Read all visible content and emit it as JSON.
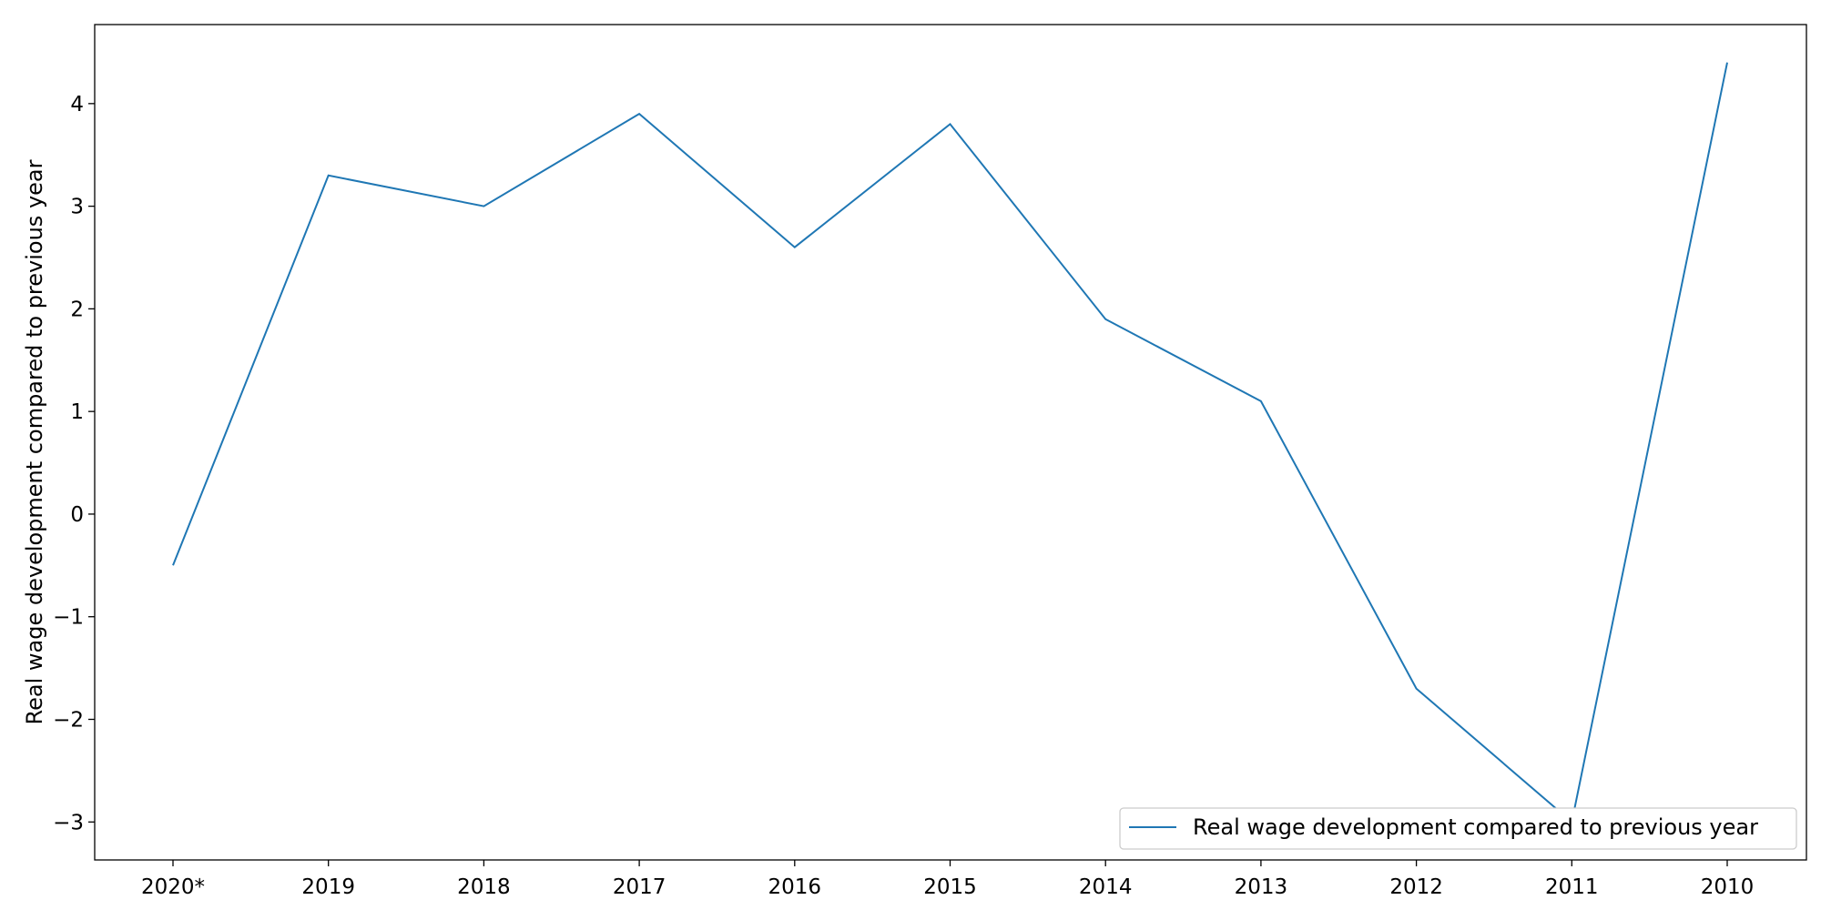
{
  "chart_data": {
    "type": "line",
    "categories": [
      "2020*",
      "2019",
      "2018",
      "2017",
      "2016",
      "2015",
      "2014",
      "2013",
      "2012",
      "2011",
      "2010"
    ],
    "series": [
      {
        "name": "Real wage development compared to previous year",
        "values": [
          -0.5,
          3.3,
          3.0,
          3.9,
          2.6,
          3.8,
          1.9,
          1.1,
          -1.7,
          -3.0,
          4.4
        ],
        "color": "#1f77b4"
      }
    ],
    "title": "",
    "xlabel": "",
    "ylabel": "Real wage development compared to previous year",
    "ylim": [
      -3.37,
      4.77
    ],
    "yticks": [
      -3,
      -2,
      -1,
      0,
      1,
      2,
      3,
      4
    ],
    "ytick_labels": [
      "−3",
      "−2",
      "−1",
      "0",
      "1",
      "2",
      "3",
      "4"
    ],
    "grid": false,
    "legend_position": "lower-right"
  }
}
